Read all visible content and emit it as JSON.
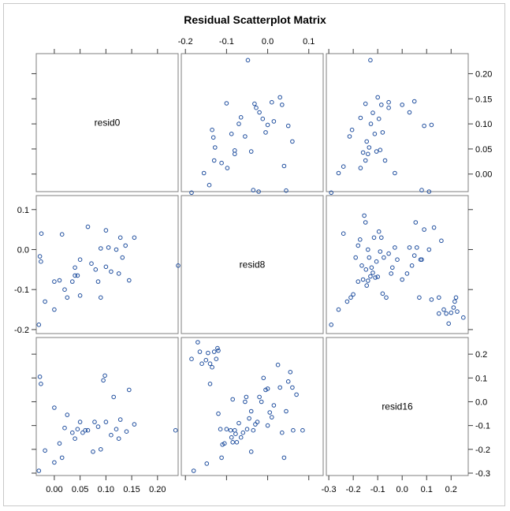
{
  "chart_data": {
    "type": "scatter",
    "title": "Residual Scatterplot Matrix",
    "variables": [
      "resid0",
      "resid8",
      "resid16"
    ],
    "axes": {
      "resid0": {
        "ticks": [
          0.0,
          0.05,
          0.1,
          0.15,
          0.2
        ],
        "labels": [
          "0.00",
          "0.05",
          "0.10",
          "0.15",
          "0.20"
        ],
        "range": [
          -0.035,
          0.24
        ]
      },
      "resid8": {
        "ticks": [
          -0.2,
          -0.1,
          0.0,
          0.1
        ],
        "labels": [
          "-0.2",
          "-0.1",
          "0.0",
          "0.1"
        ],
        "range": [
          -0.21,
          0.135
        ]
      },
      "resid16": {
        "ticks": [
          -0.3,
          -0.2,
          -0.1,
          0.0,
          0.1,
          0.2
        ],
        "labels": [
          "-0.3",
          "-0.2",
          "-0.1",
          "0.0",
          "0.1",
          "0.2"
        ],
        "range": [
          -0.31,
          0.27
        ]
      }
    },
    "panels": [
      {
        "x": "resid8",
        "y": "resid0",
        "points": [
          [
            -0.185,
            -0.037
          ],
          [
            -0.155,
            0.002
          ],
          [
            -0.142,
            -0.022
          ],
          [
            -0.135,
            0.088
          ],
          [
            -0.132,
            0.073
          ],
          [
            -0.13,
            0.027
          ],
          [
            -0.128,
            0.053
          ],
          [
            -0.112,
            0.022
          ],
          [
            -0.1,
            0.141
          ],
          [
            -0.098,
            0.012
          ],
          [
            -0.088,
            0.08
          ],
          [
            -0.08,
            0.047
          ],
          [
            -0.08,
            0.04
          ],
          [
            -0.07,
            0.1
          ],
          [
            -0.065,
            0.113
          ],
          [
            -0.055,
            0.075
          ],
          [
            -0.048,
            0.227
          ],
          [
            -0.04,
            0.045
          ],
          [
            -0.035,
            -0.032
          ],
          [
            -0.032,
            0.14
          ],
          [
            -0.028,
            0.132
          ],
          [
            -0.022,
            -0.035
          ],
          [
            -0.02,
            0.123
          ],
          [
            -0.012,
            0.11
          ],
          [
            -0.005,
            0.083
          ],
          [
            0.0,
            0.098
          ],
          [
            0.01,
            0.143
          ],
          [
            0.015,
            0.105
          ],
          [
            0.03,
            0.153
          ],
          [
            0.035,
            0.138
          ],
          [
            0.04,
            0.016
          ],
          [
            0.045,
            -0.033
          ],
          [
            0.05,
            0.096
          ],
          [
            0.06,
            0.065
          ]
        ]
      },
      {
        "x": "resid16",
        "y": "resid0",
        "points": [
          [
            -0.29,
            -0.037
          ],
          [
            -0.26,
            0.002
          ],
          [
            -0.24,
            0.015
          ],
          [
            -0.215,
            0.075
          ],
          [
            -0.205,
            0.088
          ],
          [
            -0.17,
            0.012
          ],
          [
            -0.17,
            0.112
          ],
          [
            -0.16,
            0.043
          ],
          [
            -0.15,
            0.14
          ],
          [
            -0.15,
            0.027
          ],
          [
            -0.145,
            0.065
          ],
          [
            -0.14,
            0.04
          ],
          [
            -0.135,
            0.053
          ],
          [
            -0.13,
            0.227
          ],
          [
            -0.128,
            0.1
          ],
          [
            -0.12,
            0.122
          ],
          [
            -0.112,
            0.08
          ],
          [
            -0.105,
            0.045
          ],
          [
            -0.1,
            0.153
          ],
          [
            -0.095,
            0.11
          ],
          [
            -0.09,
            0.048
          ],
          [
            -0.085,
            0.138
          ],
          [
            -0.08,
            0.083
          ],
          [
            -0.07,
            0.027
          ],
          [
            -0.055,
            0.143
          ],
          [
            -0.055,
            0.132
          ],
          [
            -0.03,
            0.002
          ],
          [
            0.0,
            0.138
          ],
          [
            0.03,
            0.123
          ],
          [
            0.05,
            0.145
          ],
          [
            0.08,
            -0.032
          ],
          [
            0.09,
            0.096
          ],
          [
            0.11,
            -0.035
          ],
          [
            0.12,
            0.098
          ]
        ]
      },
      {
        "x": "resid0",
        "y": "resid8",
        "points": [
          [
            -0.03,
            -0.188
          ],
          [
            -0.028,
            -0.017
          ],
          [
            -0.026,
            -0.03
          ],
          [
            -0.025,
            0.04
          ],
          [
            -0.018,
            -0.13
          ],
          [
            0.0,
            -0.08
          ],
          [
            0.0,
            -0.15
          ],
          [
            0.01,
            -0.077
          ],
          [
            0.015,
            0.038
          ],
          [
            0.02,
            -0.1
          ],
          [
            0.025,
            -0.12
          ],
          [
            0.035,
            -0.08
          ],
          [
            0.04,
            -0.065
          ],
          [
            0.04,
            -0.045
          ],
          [
            0.045,
            -0.065
          ],
          [
            0.05,
            -0.115
          ],
          [
            0.05,
            -0.025
          ],
          [
            0.065,
            0.057
          ],
          [
            0.072,
            -0.035
          ],
          [
            0.08,
            -0.05
          ],
          [
            0.085,
            -0.08
          ],
          [
            0.09,
            -0.12
          ],
          [
            0.09,
            0.003
          ],
          [
            0.1,
            0.048
          ],
          [
            0.1,
            -0.043
          ],
          [
            0.105,
            0.005
          ],
          [
            0.11,
            -0.055
          ],
          [
            0.12,
            0.0
          ],
          [
            0.125,
            -0.06
          ],
          [
            0.128,
            0.03
          ],
          [
            0.132,
            -0.02
          ],
          [
            0.138,
            0.01
          ],
          [
            0.145,
            -0.077
          ],
          [
            0.155,
            0.03
          ],
          [
            0.24,
            -0.04
          ]
        ]
      },
      {
        "x": "resid16",
        "y": "resid8",
        "points": [
          [
            -0.29,
            -0.188
          ],
          [
            -0.26,
            -0.15
          ],
          [
            -0.24,
            0.04
          ],
          [
            -0.225,
            -0.13
          ],
          [
            -0.21,
            -0.12
          ],
          [
            -0.2,
            -0.112
          ],
          [
            -0.19,
            -0.02
          ],
          [
            -0.18,
            0.01
          ],
          [
            -0.18,
            -0.08
          ],
          [
            -0.172,
            0.025
          ],
          [
            -0.165,
            -0.04
          ],
          [
            -0.16,
            -0.075
          ],
          [
            -0.155,
            0.085
          ],
          [
            -0.15,
            0.068
          ],
          [
            -0.148,
            -0.05
          ],
          [
            -0.145,
            -0.09
          ],
          [
            -0.14,
            0.0
          ],
          [
            -0.14,
            -0.078
          ],
          [
            -0.135,
            -0.02
          ],
          [
            -0.13,
            -0.067
          ],
          [
            -0.125,
            -0.045
          ],
          [
            -0.12,
            -0.058
          ],
          [
            -0.115,
            0.03
          ],
          [
            -0.11,
            -0.07
          ],
          [
            -0.105,
            -0.03
          ],
          [
            -0.1,
            -0.068
          ],
          [
            -0.095,
            0.045
          ],
          [
            -0.09,
            -0.005
          ],
          [
            -0.085,
            0.03
          ],
          [
            -0.08,
            -0.11
          ],
          [
            -0.075,
            -0.02
          ],
          [
            -0.065,
            -0.12
          ],
          [
            -0.055,
            -0.01
          ],
          [
            -0.045,
            -0.06
          ],
          [
            -0.04,
            -0.045
          ],
          [
            -0.03,
            0.005
          ],
          [
            -0.02,
            -0.025
          ],
          [
            0.0,
            -0.075
          ],
          [
            0.02,
            -0.06
          ],
          [
            0.03,
            0.005
          ],
          [
            0.04,
            -0.04
          ],
          [
            0.05,
            -0.015
          ],
          [
            0.055,
            0.068
          ],
          [
            0.06,
            0.005
          ],
          [
            0.07,
            -0.12
          ],
          [
            0.075,
            -0.025
          ],
          [
            0.08,
            -0.025
          ],
          [
            0.09,
            0.05
          ],
          [
            0.11,
            0.0
          ],
          [
            0.12,
            -0.125
          ],
          [
            0.13,
            0.055
          ],
          [
            0.15,
            -0.16
          ],
          [
            0.15,
            -0.12
          ],
          [
            0.16,
            0.022
          ],
          [
            0.17,
            -0.15
          ],
          [
            0.18,
            -0.16
          ],
          [
            0.19,
            -0.185
          ],
          [
            0.2,
            -0.158
          ],
          [
            0.21,
            -0.145
          ],
          [
            0.215,
            -0.13
          ],
          [
            0.22,
            -0.12
          ],
          [
            0.225,
            -0.155
          ],
          [
            0.25,
            -0.17
          ]
        ]
      },
      {
        "x": "resid0",
        "y": "resid16",
        "points": [
          [
            -0.03,
            -0.29
          ],
          [
            -0.028,
            0.105
          ],
          [
            -0.026,
            0.075
          ],
          [
            -0.018,
            -0.205
          ],
          [
            0.0,
            -0.025
          ],
          [
            0.0,
            -0.255
          ],
          [
            0.01,
            -0.175
          ],
          [
            0.015,
            -0.235
          ],
          [
            0.02,
            -0.11
          ],
          [
            0.025,
            -0.055
          ],
          [
            0.035,
            -0.13
          ],
          [
            0.04,
            -0.155
          ],
          [
            0.045,
            -0.115
          ],
          [
            0.05,
            -0.085
          ],
          [
            0.055,
            -0.13
          ],
          [
            0.06,
            -0.12
          ],
          [
            0.065,
            -0.12
          ],
          [
            0.075,
            -0.21
          ],
          [
            0.078,
            -0.085
          ],
          [
            0.085,
            -0.105
          ],
          [
            0.09,
            -0.2
          ],
          [
            0.095,
            0.09
          ],
          [
            0.098,
            0.11
          ],
          [
            0.1,
            -0.085
          ],
          [
            0.11,
            -0.14
          ],
          [
            0.115,
            0.02
          ],
          [
            0.12,
            -0.115
          ],
          [
            0.125,
            -0.155
          ],
          [
            0.128,
            -0.075
          ],
          [
            0.14,
            -0.125
          ],
          [
            0.145,
            0.05
          ],
          [
            0.155,
            -0.095
          ],
          [
            0.235,
            -0.12
          ]
        ]
      },
      {
        "x": "resid8",
        "y": "resid16",
        "points": [
          [
            -0.185,
            0.18
          ],
          [
            -0.18,
            -0.29
          ],
          [
            -0.17,
            0.25
          ],
          [
            -0.165,
            0.21
          ],
          [
            -0.16,
            0.16
          ],
          [
            -0.15,
            0.175
          ],
          [
            -0.148,
            -0.26
          ],
          [
            -0.145,
            0.205
          ],
          [
            -0.14,
            0.16
          ],
          [
            -0.14,
            0.075
          ],
          [
            -0.135,
            0.145
          ],
          [
            -0.13,
            0.21
          ],
          [
            -0.125,
            0.18
          ],
          [
            -0.122,
            0.225
          ],
          [
            -0.12,
            0.215
          ],
          [
            -0.12,
            -0.05
          ],
          [
            -0.115,
            -0.115
          ],
          [
            -0.112,
            -0.235
          ],
          [
            -0.11,
            -0.18
          ],
          [
            -0.105,
            -0.175
          ],
          [
            -0.1,
            -0.115
          ],
          [
            -0.09,
            -0.12
          ],
          [
            -0.088,
            -0.15
          ],
          [
            -0.085,
            -0.17
          ],
          [
            -0.085,
            0.01
          ],
          [
            -0.08,
            -0.12
          ],
          [
            -0.078,
            -0.135
          ],
          [
            -0.075,
            -0.17
          ],
          [
            -0.07,
            -0.09
          ],
          [
            -0.065,
            -0.15
          ],
          [
            -0.06,
            -0.13
          ],
          [
            -0.055,
            0.0
          ],
          [
            -0.052,
            0.02
          ],
          [
            -0.05,
            -0.115
          ],
          [
            -0.045,
            -0.07
          ],
          [
            -0.04,
            -0.21
          ],
          [
            -0.04,
            -0.04
          ],
          [
            -0.035,
            -0.12
          ],
          [
            -0.03,
            -0.095
          ],
          [
            -0.025,
            -0.085
          ],
          [
            -0.02,
            0.02
          ],
          [
            -0.015,
            0.0
          ],
          [
            -0.01,
            0.1
          ],
          [
            -0.005,
            0.05
          ],
          [
            0.0,
            0.055
          ],
          [
            0.0,
            -0.1
          ],
          [
            0.005,
            -0.045
          ],
          [
            0.01,
            -0.065
          ],
          [
            0.015,
            -0.015
          ],
          [
            0.025,
            0.155
          ],
          [
            0.03,
            0.06
          ],
          [
            0.035,
            -0.13
          ],
          [
            0.04,
            -0.235
          ],
          [
            0.045,
            -0.04
          ],
          [
            0.05,
            0.085
          ],
          [
            0.055,
            0.125
          ],
          [
            0.06,
            0.06
          ],
          [
            0.062,
            -0.12
          ],
          [
            0.07,
            0.03
          ],
          [
            0.085,
            -0.12
          ]
        ]
      }
    ]
  }
}
